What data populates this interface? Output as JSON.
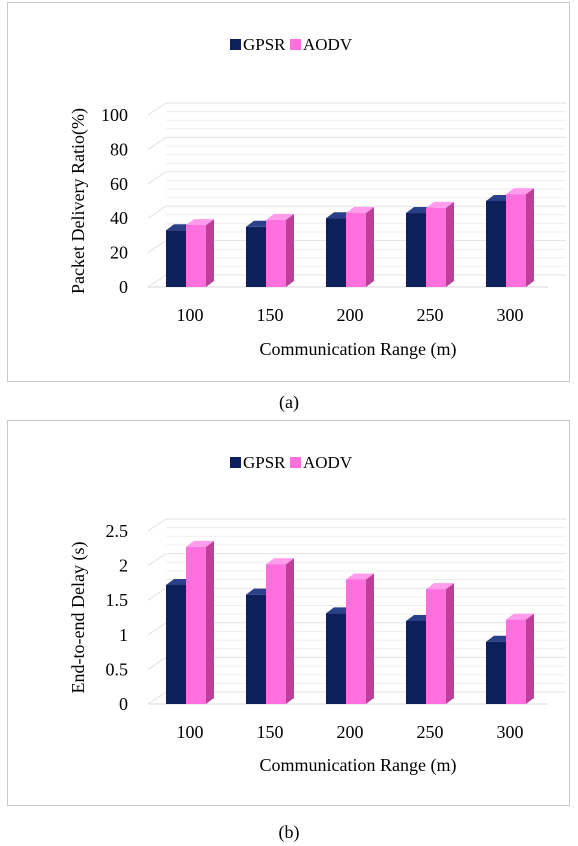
{
  "captions": {
    "a": "(a)",
    "b": "(b)"
  },
  "colors": {
    "gpsr_front": "#0d1f5c",
    "gpsr_side": "#1a2f72",
    "gpsr_top": "#2a4088",
    "aodv_front": "#ff6fde",
    "aodv_side": "#b8429a",
    "aodv_top": "#ff9cec",
    "grid": "#e3e3e3"
  },
  "chart_data": [
    {
      "id": "a",
      "type": "bar",
      "categories": [
        "100",
        "150",
        "200",
        "250",
        "300"
      ],
      "series": [
        {
          "name": "GPSR",
          "values": [
            33,
            35,
            40,
            43,
            50
          ]
        },
        {
          "name": "AODV",
          "values": [
            36,
            39,
            43,
            46,
            54
          ]
        }
      ],
      "xlabel": "Communication Range (m)",
      "ylabel": "Packet Delivery Ratio(%)",
      "ylim": [
        0,
        100
      ],
      "yticks": [
        0,
        20,
        40,
        60,
        80,
        100
      ],
      "ytick_labels": [
        "0",
        "20",
        "40",
        "60",
        "80",
        "100"
      ],
      "legend": "top",
      "grid": true
    },
    {
      "id": "b",
      "type": "bar",
      "categories": [
        "100",
        "150",
        "200",
        "250",
        "300"
      ],
      "series": [
        {
          "name": "GPSR",
          "values": [
            1.72,
            1.58,
            1.31,
            1.2,
            0.9
          ]
        },
        {
          "name": "AODV",
          "values": [
            2.27,
            2.02,
            1.8,
            1.66,
            1.22
          ]
        }
      ],
      "xlabel": "Communication Range (m)",
      "ylabel": "End-to-end Delay (s)",
      "ylim": [
        0,
        2.5
      ],
      "yticks": [
        0,
        0.5,
        1,
        1.5,
        2,
        2.5
      ],
      "ytick_labels": [
        "0",
        "0.5",
        "1",
        "1.5",
        "2",
        "2.5"
      ],
      "legend": "top",
      "grid": true
    }
  ]
}
